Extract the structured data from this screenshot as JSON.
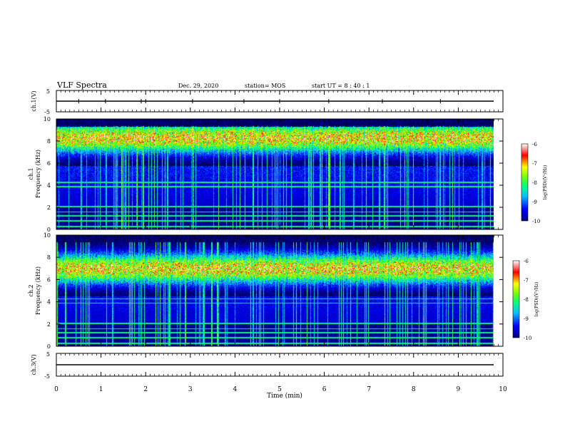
{
  "header": {
    "title": "VLF Spectra",
    "date": "Dec. 29, 2020",
    "station": "station= MOS",
    "start_ut": "start  UT =   8 : 40 : 1"
  },
  "chart_data": [
    {
      "type": "line",
      "panel": "ch1-waveform",
      "ylabel": "ch.1(V)",
      "ylim": [
        -5,
        5
      ],
      "yticks": [
        5,
        -5
      ],
      "xlim": [
        0,
        10
      ],
      "series": [
        {
          "values": [
            0,
            0
          ]
        }
      ]
    },
    {
      "type": "heatmap",
      "panel": "ch1-spectrogram",
      "ylabel_top": "ch.1",
      "ylabel": "Frequency  (kHz)",
      "ylim": [
        0,
        10
      ],
      "yticks": [
        0,
        2,
        4,
        6,
        8,
        10
      ],
      "xlim": [
        0,
        10
      ],
      "data_extent_min": 9.8,
      "colorbar": {
        "label": "log(PSD)(V²/Hz)",
        "range": [
          -10,
          -6
        ],
        "ticks": [
          -6,
          -7,
          -8,
          -9,
          -10
        ]
      },
      "band_center_khz": 8.3
    },
    {
      "type": "heatmap",
      "panel": "ch2-spectrogram",
      "ylabel_top": "ch.2",
      "ylabel": "Frequency  (kHz)",
      "ylim": [
        0,
        10
      ],
      "yticks": [
        0,
        2,
        4,
        6,
        8,
        10
      ],
      "xlim": [
        0,
        10
      ],
      "data_extent_min": 9.8,
      "colorbar": {
        "label": "log(PSD)(V²/Hz)",
        "range": [
          -10,
          -6
        ],
        "ticks": [
          -6,
          -7,
          -8,
          -9,
          -10
        ]
      },
      "band_center_khz": 7.0
    },
    {
      "type": "line",
      "panel": "ch3-waveform",
      "ylabel": "ch.3(V)",
      "ylim": [
        -5,
        5
      ],
      "yticks": [
        5,
        -5
      ],
      "xlim": [
        0,
        10
      ],
      "series": [
        {
          "values": [
            0,
            0
          ]
        }
      ]
    }
  ],
  "xaxis": {
    "label": "Time  (min)",
    "ticks": [
      "0",
      "1",
      "2",
      "3",
      "4",
      "5",
      "6",
      "7",
      "8",
      "9",
      "10"
    ]
  },
  "colors": {
    "spectro_background": "#000000",
    "colormap": [
      "#000080",
      "#0000ff",
      "#00ffff",
      "#00ff00",
      "#ffff00",
      "#ff0000",
      "#ffffff"
    ]
  }
}
